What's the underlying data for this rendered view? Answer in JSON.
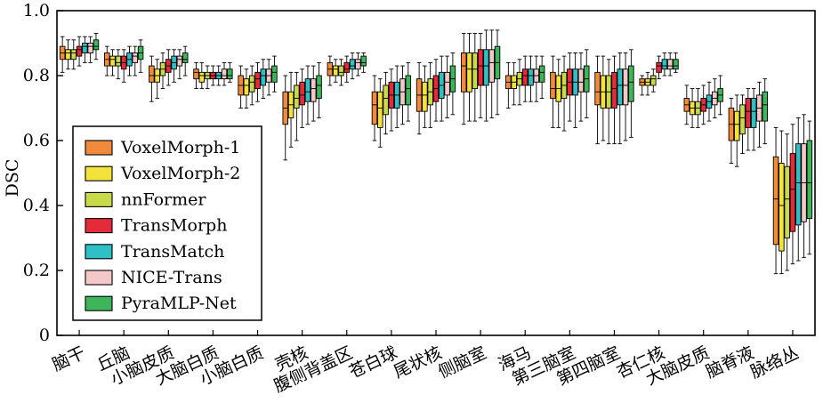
{
  "chart_data": {
    "type": "box",
    "title": "",
    "xlabel": "",
    "ylabel": "DSC",
    "ylim": [
      0,
      1.0
    ],
    "yticks": [
      "0",
      "0.2",
      "0.4",
      "0.6",
      "0.8",
      "1.0"
    ],
    "categories": [
      "脑干",
      "丘脑",
      "小脑皮质",
      "大脑白质",
      "小脑白质",
      "壳核",
      "腹侧背盖区",
      "苍白球",
      "尾状核",
      "侧脑室",
      "海马",
      "第三脑室",
      "第四脑室",
      "杏仁核",
      "大脑皮质",
      "脑脊液",
      "脉络丛"
    ],
    "legend": {
      "placement": "left-middle"
    },
    "series": [
      {
        "name": "VoxelMorph-1",
        "color": "#f28a3c",
        "stats": [
          {
            "min": 0.81,
            "q1": 0.85,
            "median": 0.87,
            "q3": 0.89,
            "max": 0.92
          },
          {
            "min": 0.8,
            "q1": 0.83,
            "median": 0.85,
            "q3": 0.87,
            "max": 0.89
          },
          {
            "min": 0.72,
            "q1": 0.78,
            "median": 0.8,
            "q3": 0.83,
            "max": 0.86
          },
          {
            "min": 0.76,
            "q1": 0.79,
            "median": 0.81,
            "q3": 0.82,
            "max": 0.84
          },
          {
            "min": 0.7,
            "q1": 0.74,
            "median": 0.77,
            "q3": 0.8,
            "max": 0.83
          },
          {
            "min": 0.54,
            "q1": 0.65,
            "median": 0.7,
            "q3": 0.75,
            "max": 0.8
          },
          {
            "min": 0.77,
            "q1": 0.8,
            "median": 0.82,
            "q3": 0.84,
            "max": 0.86
          },
          {
            "min": 0.6,
            "q1": 0.65,
            "median": 0.71,
            "q3": 0.75,
            "max": 0.8
          },
          {
            "min": 0.62,
            "q1": 0.69,
            "median": 0.74,
            "q3": 0.79,
            "max": 0.84
          },
          {
            "min": 0.65,
            "q1": 0.75,
            "median": 0.83,
            "q3": 0.87,
            "max": 0.93
          },
          {
            "min": 0.7,
            "q1": 0.76,
            "median": 0.78,
            "q3": 0.8,
            "max": 0.84
          },
          {
            "min": 0.64,
            "q1": 0.73,
            "median": 0.76,
            "q3": 0.81,
            "max": 0.86
          },
          {
            "min": 0.59,
            "q1": 0.71,
            "median": 0.75,
            "q3": 0.81,
            "max": 0.86
          },
          {
            "min": 0.74,
            "q1": 0.77,
            "median": 0.78,
            "q3": 0.79,
            "max": 0.8
          },
          {
            "min": 0.65,
            "q1": 0.69,
            "median": 0.71,
            "q3": 0.73,
            "max": 0.77
          },
          {
            "min": 0.53,
            "q1": 0.6,
            "median": 0.65,
            "q3": 0.7,
            "max": 0.73
          },
          {
            "min": 0.19,
            "q1": 0.28,
            "median": 0.42,
            "q3": 0.55,
            "max": 0.64
          }
        ]
      },
      {
        "name": "VoxelMorph-2",
        "color": "#f4e23a",
        "stats": [
          {
            "min": 0.82,
            "q1": 0.85,
            "median": 0.87,
            "q3": 0.88,
            "max": 0.91
          },
          {
            "min": 0.8,
            "q1": 0.83,
            "median": 0.85,
            "q3": 0.86,
            "max": 0.88
          },
          {
            "min": 0.73,
            "q1": 0.78,
            "median": 0.8,
            "q3": 0.82,
            "max": 0.85
          },
          {
            "min": 0.76,
            "q1": 0.78,
            "median": 0.8,
            "q3": 0.81,
            "max": 0.84
          },
          {
            "min": 0.7,
            "q1": 0.74,
            "median": 0.77,
            "q3": 0.79,
            "max": 0.82
          },
          {
            "min": 0.58,
            "q1": 0.67,
            "median": 0.71,
            "q3": 0.75,
            "max": 0.81
          },
          {
            "min": 0.78,
            "q1": 0.8,
            "median": 0.82,
            "q3": 0.83,
            "max": 0.85
          },
          {
            "min": 0.58,
            "q1": 0.64,
            "median": 0.7,
            "q3": 0.75,
            "max": 0.79
          },
          {
            "min": 0.64,
            "q1": 0.69,
            "median": 0.74,
            "q3": 0.78,
            "max": 0.83
          },
          {
            "min": 0.66,
            "q1": 0.75,
            "median": 0.82,
            "q3": 0.87,
            "max": 0.93
          },
          {
            "min": 0.71,
            "q1": 0.76,
            "median": 0.78,
            "q3": 0.8,
            "max": 0.84
          },
          {
            "min": 0.64,
            "q1": 0.72,
            "median": 0.76,
            "q3": 0.8,
            "max": 0.85
          },
          {
            "min": 0.6,
            "q1": 0.7,
            "median": 0.75,
            "q3": 0.8,
            "max": 0.86
          },
          {
            "min": 0.74,
            "q1": 0.77,
            "median": 0.78,
            "q3": 0.79,
            "max": 0.81
          },
          {
            "min": 0.64,
            "q1": 0.68,
            "median": 0.7,
            "q3": 0.72,
            "max": 0.76
          },
          {
            "min": 0.52,
            "q1": 0.6,
            "median": 0.65,
            "q3": 0.69,
            "max": 0.74
          },
          {
            "min": 0.19,
            "q1": 0.26,
            "median": 0.4,
            "q3": 0.53,
            "max": 0.63
          }
        ]
      },
      {
        "name": "nnFormer",
        "color": "#c8d94a",
        "stats": [
          {
            "min": 0.82,
            "q1": 0.85,
            "median": 0.87,
            "q3": 0.88,
            "max": 0.91
          },
          {
            "min": 0.79,
            "q1": 0.83,
            "median": 0.84,
            "q3": 0.86,
            "max": 0.88
          },
          {
            "min": 0.76,
            "q1": 0.8,
            "median": 0.82,
            "q3": 0.84,
            "max": 0.87
          },
          {
            "min": 0.76,
            "q1": 0.79,
            "median": 0.8,
            "q3": 0.81,
            "max": 0.83
          },
          {
            "min": 0.71,
            "q1": 0.75,
            "median": 0.78,
            "q3": 0.8,
            "max": 0.83
          },
          {
            "min": 0.6,
            "q1": 0.7,
            "median": 0.73,
            "q3": 0.77,
            "max": 0.81
          },
          {
            "min": 0.77,
            "q1": 0.8,
            "median": 0.81,
            "q3": 0.83,
            "max": 0.85
          },
          {
            "min": 0.62,
            "q1": 0.68,
            "median": 0.73,
            "q3": 0.77,
            "max": 0.81
          },
          {
            "min": 0.64,
            "q1": 0.71,
            "median": 0.75,
            "q3": 0.79,
            "max": 0.84
          },
          {
            "min": 0.66,
            "q1": 0.76,
            "median": 0.82,
            "q3": 0.87,
            "max": 0.93
          },
          {
            "min": 0.71,
            "q1": 0.77,
            "median": 0.79,
            "q3": 0.81,
            "max": 0.85
          },
          {
            "min": 0.63,
            "q1": 0.73,
            "median": 0.77,
            "q3": 0.81,
            "max": 0.86
          },
          {
            "min": 0.59,
            "q1": 0.7,
            "median": 0.75,
            "q3": 0.8,
            "max": 0.85
          },
          {
            "min": 0.75,
            "q1": 0.77,
            "median": 0.79,
            "q3": 0.8,
            "max": 0.82
          },
          {
            "min": 0.64,
            "q1": 0.68,
            "median": 0.7,
            "q3": 0.72,
            "max": 0.76
          },
          {
            "min": 0.56,
            "q1": 0.62,
            "median": 0.67,
            "q3": 0.71,
            "max": 0.74
          },
          {
            "min": 0.2,
            "q1": 0.3,
            "median": 0.42,
            "q3": 0.52,
            "max": 0.62
          }
        ]
      },
      {
        "name": "TransMorph",
        "color": "#e52b3a",
        "stats": [
          {
            "min": 0.83,
            "q1": 0.86,
            "median": 0.88,
            "q3": 0.89,
            "max": 0.92
          },
          {
            "min": 0.78,
            "q1": 0.82,
            "median": 0.84,
            "q3": 0.86,
            "max": 0.88
          },
          {
            "min": 0.77,
            "q1": 0.81,
            "median": 0.83,
            "q3": 0.85,
            "max": 0.88
          },
          {
            "min": 0.77,
            "q1": 0.79,
            "median": 0.8,
            "q3": 0.81,
            "max": 0.83
          },
          {
            "min": 0.72,
            "q1": 0.76,
            "median": 0.79,
            "q3": 0.81,
            "max": 0.84
          },
          {
            "min": 0.64,
            "q1": 0.71,
            "median": 0.74,
            "q3": 0.78,
            "max": 0.82
          },
          {
            "min": 0.78,
            "q1": 0.81,
            "median": 0.82,
            "q3": 0.84,
            "max": 0.86
          },
          {
            "min": 0.63,
            "q1": 0.7,
            "median": 0.74,
            "q3": 0.78,
            "max": 0.82
          },
          {
            "min": 0.66,
            "q1": 0.72,
            "median": 0.76,
            "q3": 0.8,
            "max": 0.85
          },
          {
            "min": 0.67,
            "q1": 0.77,
            "median": 0.83,
            "q3": 0.88,
            "max": 0.93
          },
          {
            "min": 0.72,
            "q1": 0.77,
            "median": 0.8,
            "q3": 0.82,
            "max": 0.86
          },
          {
            "min": 0.66,
            "q1": 0.74,
            "median": 0.78,
            "q3": 0.82,
            "max": 0.87
          },
          {
            "min": 0.59,
            "q1": 0.7,
            "median": 0.76,
            "q3": 0.81,
            "max": 0.86
          },
          {
            "min": 0.79,
            "q1": 0.81,
            "median": 0.83,
            "q3": 0.84,
            "max": 0.86
          },
          {
            "min": 0.65,
            "q1": 0.69,
            "median": 0.71,
            "q3": 0.73,
            "max": 0.77
          },
          {
            "min": 0.57,
            "q1": 0.64,
            "median": 0.69,
            "q3": 0.73,
            "max": 0.76
          },
          {
            "min": 0.22,
            "q1": 0.32,
            "median": 0.45,
            "q3": 0.56,
            "max": 0.65
          }
        ]
      },
      {
        "name": "TransMatch",
        "color": "#2ec0c4",
        "stats": [
          {
            "min": 0.84,
            "q1": 0.87,
            "median": 0.89,
            "q3": 0.9,
            "max": 0.92
          },
          {
            "min": 0.8,
            "q1": 0.83,
            "median": 0.85,
            "q3": 0.87,
            "max": 0.89
          },
          {
            "min": 0.78,
            "q1": 0.82,
            "median": 0.84,
            "q3": 0.86,
            "max": 0.88
          },
          {
            "min": 0.77,
            "q1": 0.79,
            "median": 0.8,
            "q3": 0.81,
            "max": 0.83
          },
          {
            "min": 0.73,
            "q1": 0.77,
            "median": 0.8,
            "q3": 0.82,
            "max": 0.85
          },
          {
            "min": 0.65,
            "q1": 0.72,
            "median": 0.75,
            "q3": 0.79,
            "max": 0.83
          },
          {
            "min": 0.79,
            "q1": 0.82,
            "median": 0.83,
            "q3": 0.85,
            "max": 0.87
          },
          {
            "min": 0.64,
            "q1": 0.7,
            "median": 0.74,
            "q3": 0.78,
            "max": 0.83
          },
          {
            "min": 0.66,
            "q1": 0.73,
            "median": 0.77,
            "q3": 0.81,
            "max": 0.86
          },
          {
            "min": 0.66,
            "q1": 0.77,
            "median": 0.83,
            "q3": 0.88,
            "max": 0.94
          },
          {
            "min": 0.72,
            "q1": 0.77,
            "median": 0.8,
            "q3": 0.82,
            "max": 0.86
          },
          {
            "min": 0.64,
            "q1": 0.74,
            "median": 0.78,
            "q3": 0.82,
            "max": 0.87
          },
          {
            "min": 0.59,
            "q1": 0.71,
            "median": 0.77,
            "q3": 0.82,
            "max": 0.87
          },
          {
            "min": 0.8,
            "q1": 0.82,
            "median": 0.83,
            "q3": 0.85,
            "max": 0.87
          },
          {
            "min": 0.66,
            "q1": 0.7,
            "median": 0.72,
            "q3": 0.74,
            "max": 0.78
          },
          {
            "min": 0.57,
            "q1": 0.64,
            "median": 0.69,
            "q3": 0.73,
            "max": 0.76
          },
          {
            "min": 0.23,
            "q1": 0.34,
            "median": 0.47,
            "q3": 0.59,
            "max": 0.67
          }
        ]
      },
      {
        "name": "NICE-Trans",
        "color": "#f2c8c8",
        "stats": [
          {
            "min": 0.84,
            "q1": 0.87,
            "median": 0.89,
            "q3": 0.9,
            "max": 0.92
          },
          {
            "min": 0.8,
            "q1": 0.84,
            "median": 0.86,
            "q3": 0.87,
            "max": 0.89
          },
          {
            "min": 0.79,
            "q1": 0.83,
            "median": 0.85,
            "q3": 0.86,
            "max": 0.88
          },
          {
            "min": 0.77,
            "q1": 0.79,
            "median": 0.8,
            "q3": 0.82,
            "max": 0.84
          },
          {
            "min": 0.74,
            "q1": 0.78,
            "median": 0.8,
            "q3": 0.82,
            "max": 0.85
          },
          {
            "min": 0.66,
            "q1": 0.72,
            "median": 0.76,
            "q3": 0.79,
            "max": 0.83
          },
          {
            "min": 0.8,
            "q1": 0.82,
            "median": 0.84,
            "q3": 0.85,
            "max": 0.87
          },
          {
            "min": 0.65,
            "q1": 0.71,
            "median": 0.75,
            "q3": 0.79,
            "max": 0.83
          },
          {
            "min": 0.67,
            "q1": 0.74,
            "median": 0.78,
            "q3": 0.81,
            "max": 0.86
          },
          {
            "min": 0.67,
            "q1": 0.78,
            "median": 0.84,
            "q3": 0.88,
            "max": 0.94
          },
          {
            "min": 0.72,
            "q1": 0.78,
            "median": 0.8,
            "q3": 0.82,
            "max": 0.86
          },
          {
            "min": 0.66,
            "q1": 0.75,
            "median": 0.78,
            "q3": 0.82,
            "max": 0.87
          },
          {
            "min": 0.6,
            "q1": 0.71,
            "median": 0.77,
            "q3": 0.82,
            "max": 0.87
          },
          {
            "min": 0.8,
            "q1": 0.82,
            "median": 0.83,
            "q3": 0.85,
            "max": 0.87
          },
          {
            "min": 0.67,
            "q1": 0.71,
            "median": 0.73,
            "q3": 0.75,
            "max": 0.79
          },
          {
            "min": 0.58,
            "q1": 0.66,
            "median": 0.7,
            "q3": 0.74,
            "max": 0.78
          },
          {
            "min": 0.24,
            "q1": 0.35,
            "median": 0.47,
            "q3": 0.59,
            "max": 0.68
          }
        ]
      },
      {
        "name": "PyraMLP-Net",
        "color": "#3db55a",
        "stats": [
          {
            "min": 0.85,
            "q1": 0.88,
            "median": 0.89,
            "q3": 0.91,
            "max": 0.93
          },
          {
            "min": 0.81,
            "q1": 0.85,
            "median": 0.87,
            "q3": 0.89,
            "max": 0.91
          },
          {
            "min": 0.8,
            "q1": 0.84,
            "median": 0.85,
            "q3": 0.87,
            "max": 0.89
          },
          {
            "min": 0.78,
            "q1": 0.79,
            "median": 0.8,
            "q3": 0.82,
            "max": 0.84
          },
          {
            "min": 0.75,
            "q1": 0.78,
            "median": 0.81,
            "q3": 0.83,
            "max": 0.86
          },
          {
            "min": 0.67,
            "q1": 0.73,
            "median": 0.77,
            "q3": 0.8,
            "max": 0.84
          },
          {
            "min": 0.81,
            "q1": 0.83,
            "median": 0.84,
            "q3": 0.86,
            "max": 0.87
          },
          {
            "min": 0.66,
            "q1": 0.71,
            "median": 0.76,
            "q3": 0.8,
            "max": 0.84
          },
          {
            "min": 0.68,
            "q1": 0.75,
            "median": 0.79,
            "q3": 0.83,
            "max": 0.87
          },
          {
            "min": 0.68,
            "q1": 0.79,
            "median": 0.84,
            "q3": 0.89,
            "max": 0.94
          },
          {
            "min": 0.73,
            "q1": 0.78,
            "median": 0.81,
            "q3": 0.83,
            "max": 0.86
          },
          {
            "min": 0.67,
            "q1": 0.75,
            "median": 0.79,
            "q3": 0.83,
            "max": 0.88
          },
          {
            "min": 0.61,
            "q1": 0.72,
            "median": 0.78,
            "q3": 0.83,
            "max": 0.88
          },
          {
            "min": 0.81,
            "q1": 0.82,
            "median": 0.83,
            "q3": 0.85,
            "max": 0.87
          },
          {
            "min": 0.68,
            "q1": 0.72,
            "median": 0.74,
            "q3": 0.76,
            "max": 0.8
          },
          {
            "min": 0.59,
            "q1": 0.66,
            "median": 0.71,
            "q3": 0.75,
            "max": 0.79
          },
          {
            "min": 0.25,
            "q1": 0.36,
            "median": 0.47,
            "q3": 0.6,
            "max": 0.66
          }
        ]
      }
    ]
  }
}
